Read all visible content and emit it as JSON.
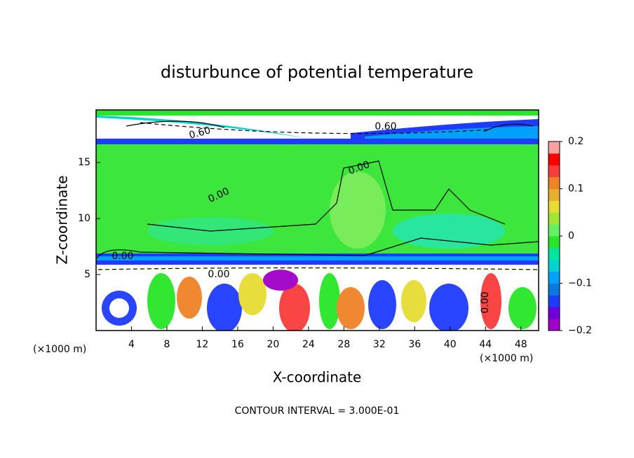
{
  "chart_data": {
    "type": "contour",
    "title": "disturbunce of potential temperature",
    "x_label": "X-coordinate",
    "y_label": "Z-coordinate",
    "x_unit": "(×1000 m)",
    "y_unit": "(×1000 m)",
    "footnote": "CONTOUR INTERVAL = 3.000E-01",
    "xlim": [
      0,
      50
    ],
    "ylim": [
      0,
      19.7
    ],
    "xticks": [
      4,
      8,
      12,
      16,
      20,
      24,
      28,
      32,
      36,
      40,
      44,
      48
    ],
    "yticks": [
      5,
      10,
      15
    ],
    "contour_labels": [
      "0.60",
      "0.60",
      "0.00",
      "0.00",
      "0.00",
      "0.00",
      "0.00"
    ],
    "colorbar": {
      "lim": [
        -0.2,
        0.2
      ],
      "ticks": [
        0.2,
        0.1,
        0,
        {
          "value": -0.1,
          "label": "−0.1"
        },
        {
          "value": -0.2,
          "label": "−0.2"
        }
      ],
      "colors": [
        "#a000c8",
        "#6e00dc",
        "#1e3cff",
        "#0a78dc",
        "#00a0ff",
        "#00d2d2",
        "#00e6a0",
        "#28e628",
        "#64f064",
        "#a0e632",
        "#e6dc32",
        "#e6af2d",
        "#f08228",
        "#fa3c3c",
        "#ff0000",
        "#ffa0a0"
      ]
    }
  }
}
